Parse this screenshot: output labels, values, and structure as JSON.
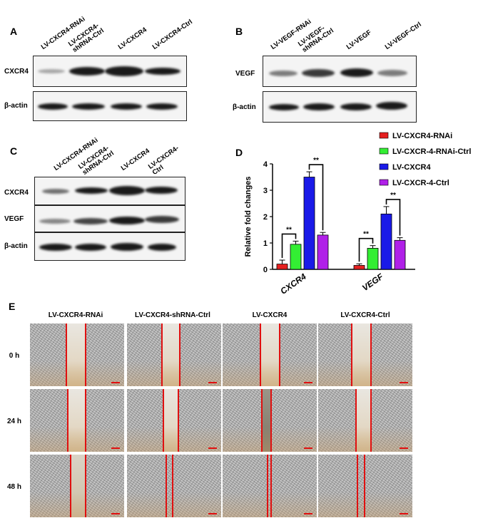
{
  "panelA": {
    "letter": "A",
    "lanes": [
      "LV-CXCR4-RNAi",
      "LV-CXCR4-\nshRNA-Ctrl",
      "LV-CXCR4",
      "LV-CXCR4-Ctrl"
    ],
    "rows": [
      "CXCR4",
      "β-actin"
    ]
  },
  "panelB": {
    "letter": "B",
    "lanes": [
      "LV-VEGF-RNAi",
      "LV-VEGF-\nshRNA-Ctrl",
      "LV-VEGF",
      "LV-VEGF-Ctrl"
    ],
    "rows": [
      "VEGF",
      "β-actin"
    ]
  },
  "panelC": {
    "letter": "C",
    "lanes": [
      "LV-CXCR4-RNAi",
      "LV-CXCR4-\nshRNA-Ctrl",
      "LV-CXCR4",
      "LV-CXCR4-\nCtrl"
    ],
    "rows": [
      "CXCR4",
      "VEGF",
      "β-actin"
    ]
  },
  "panelD": {
    "letter": "D",
    "significance": "**"
  },
  "chart_data": {
    "type": "bar",
    "categories": [
      "CXCR4",
      "VEGF"
    ],
    "series": [
      {
        "name": "LV-CXCR4-RNAi",
        "values": [
          0.2,
          0.15
        ],
        "errors": [
          0.15,
          0.06
        ],
        "color": "#e52020"
      },
      {
        "name": "LV-CXCR-4-RNAi-Ctrl",
        "values": [
          0.95,
          0.8
        ],
        "errors": [
          0.12,
          0.1
        ],
        "color": "#33ee33"
      },
      {
        "name": "LV-CXCR4",
        "values": [
          3.5,
          2.1
        ],
        "errors": [
          0.2,
          0.28
        ],
        "color": "#1a1ae8"
      },
      {
        "name": "LV-CXCR-4-Ctrl",
        "values": [
          1.3,
          1.1
        ],
        "errors": [
          0.1,
          0.1
        ],
        "color": "#b020e8"
      }
    ],
    "xlabel": "",
    "ylabel": "Relative fold changes",
    "ylim": [
      0,
      4
    ],
    "yticks": [
      "0",
      "1",
      "2",
      "3",
      "4"
    ],
    "legend_position": "top-right",
    "grid": false
  },
  "panelE": {
    "letter": "E",
    "columns": [
      "LV-CXCR4-RNAi",
      "LV-CXCR4-shRNA-Ctrl",
      "LV-CXCR4",
      "LV-CXCR4-Ctrl"
    ],
    "rows": [
      "0 h",
      "24 h",
      "48 h"
    ]
  }
}
